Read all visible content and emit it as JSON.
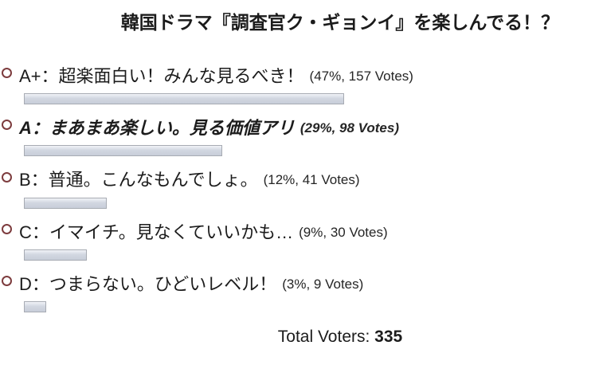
{
  "poll": {
    "title": "韓国ドラマ『調査官ク・ギョンイ』を楽しんでる！？",
    "options": [
      {
        "label": "A+：超楽面白い！みんな見るべき！",
        "stats": "(47%, 157 Votes)",
        "percent": 47,
        "votes": 157,
        "emphasized": false
      },
      {
        "label": "A：まあまあ楽しい。見る価値アリ",
        "stats": "(29%, 98 Votes)",
        "percent": 29,
        "votes": 98,
        "emphasized": true
      },
      {
        "label": "B：普通。こんなもんでしょ。",
        "stats": "(12%, 41 Votes)",
        "percent": 12,
        "votes": 41,
        "emphasized": false
      },
      {
        "label": "C：イマイチ。見なくていいかも…",
        "stats": "(9%, 30 Votes)",
        "percent": 9,
        "votes": 30,
        "emphasized": false
      },
      {
        "label": "D：つまらない。ひどいレベル！",
        "stats": "(3%, 9 Votes)",
        "percent": 3,
        "votes": 9,
        "emphasized": false
      }
    ],
    "total_label": "Total Voters:",
    "total_value": "335",
    "colors": {
      "bullet_ring": "#7d3c3e",
      "bar_border": "#a7abb3",
      "bar_fill_top": "#f1f3f7",
      "bar_fill_bottom": "#c8ced9",
      "text": "#1c1c1c"
    }
  },
  "chart_data": {
    "type": "bar",
    "orientation": "horizontal",
    "title": "韓国ドラマ『調査官ク・ギョンイ』を楽しんでる！？",
    "categories": [
      "A+：超楽面白い！みんな見るべき！",
      "A：まあまあ楽しい。見る価値アリ",
      "B：普通。こんなもんでしょ。",
      "C：イマイチ。見なくていいかも…",
      "D：つまらない。ひどいレベル！"
    ],
    "series": [
      {
        "name": "Percent",
        "values": [
          47,
          29,
          12,
          9,
          3
        ]
      },
      {
        "name": "Votes",
        "values": [
          157,
          98,
          41,
          30,
          9
        ]
      }
    ],
    "xlabel": "",
    "ylabel": "",
    "xlim": [
      0,
      100
    ],
    "grid": false,
    "legend": false,
    "total_voters": 335
  }
}
